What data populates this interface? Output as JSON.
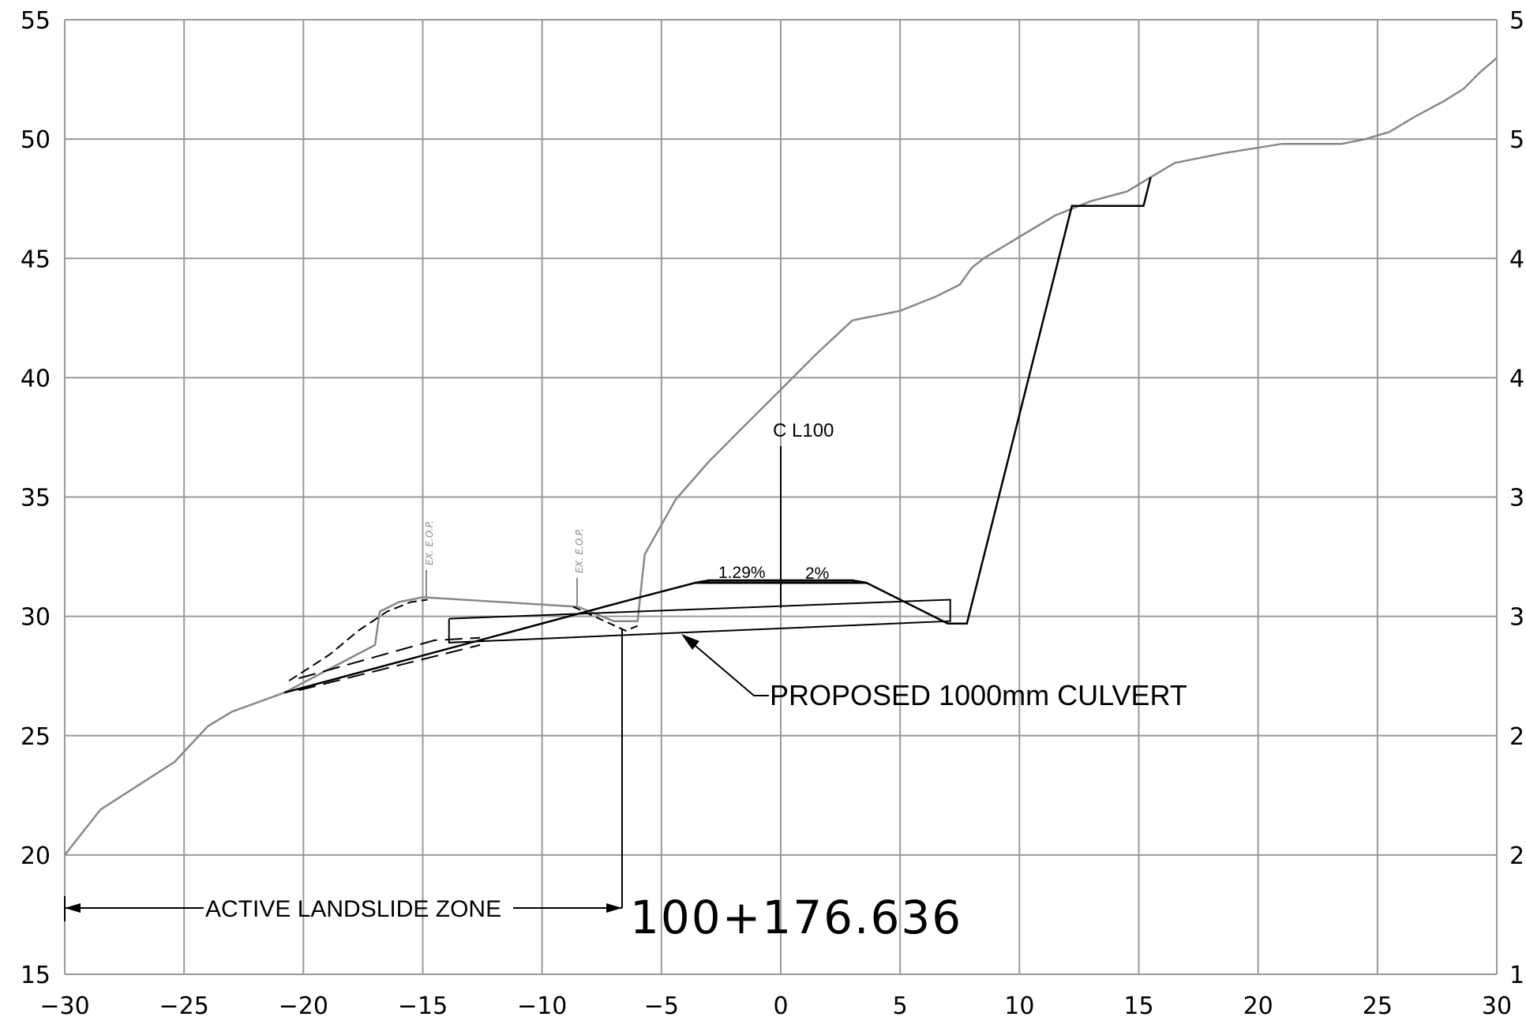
{
  "chart_data": {
    "type": "cross-section",
    "xlim": [
      -30,
      30
    ],
    "ylim": [
      15,
      55
    ],
    "x_ticks": [
      -30,
      -25,
      -20,
      -15,
      -10,
      -5,
      0,
      5,
      10,
      15,
      20,
      25,
      30
    ],
    "y_ticks": [
      15,
      20,
      25,
      30,
      35,
      40,
      45,
      50,
      55
    ],
    "x_tick_labels": [
      "−30",
      "−25",
      "−20",
      "−15",
      "−10",
      "−5",
      "0",
      "5",
      "10",
      "15",
      "20",
      "25",
      "30"
    ],
    "y_tick_labels": [
      "15",
      "20",
      "25",
      "30",
      "35",
      "40",
      "45",
      "50",
      "55"
    ],
    "y_tick_labels_right": [
      "1",
      "2",
      "2",
      "3",
      "3",
      "4",
      "4",
      "5",
      "5"
    ],
    "grid": true,
    "existing_ground": [
      [
        -30,
        20.0
      ],
      [
        -28.5,
        21.9
      ],
      [
        -25.4,
        23.9
      ],
      [
        -24.0,
        25.4
      ],
      [
        -23.0,
        26.0
      ],
      [
        -20.8,
        26.8
      ],
      [
        -17.0,
        28.8
      ],
      [
        -16.8,
        30.2
      ],
      [
        -16.0,
        30.6
      ],
      [
        -15.0,
        30.8
      ],
      [
        -8.5,
        30.4
      ],
      [
        -7.0,
        29.8
      ],
      [
        -6.0,
        29.8
      ],
      [
        -5.7,
        32.6
      ],
      [
        -4.4,
        34.9
      ],
      [
        -3.0,
        36.5
      ],
      [
        -1.5,
        38.0
      ],
      [
        0,
        39.5
      ],
      [
        1.5,
        41.0
      ],
      [
        3.0,
        42.4
      ],
      [
        5.0,
        42.8
      ],
      [
        6.5,
        43.4
      ],
      [
        7.5,
        43.9
      ],
      [
        8.0,
        44.6
      ],
      [
        8.5,
        45.0
      ],
      [
        10.0,
        45.9
      ],
      [
        11.5,
        46.8
      ],
      [
        13.0,
        47.4
      ],
      [
        14.5,
        47.8
      ],
      [
        15.5,
        48.4
      ],
      [
        16.5,
        49.0
      ],
      [
        18.5,
        49.4
      ],
      [
        21.0,
        49.8
      ],
      [
        22.0,
        49.8
      ],
      [
        23.5,
        49.8
      ],
      [
        24.5,
        50.0
      ],
      [
        25.5,
        50.3
      ],
      [
        26.5,
        50.9
      ],
      [
        27.8,
        51.6
      ],
      [
        28.6,
        52.1
      ],
      [
        29.3,
        52.8
      ],
      [
        30,
        53.4
      ]
    ],
    "existing_ground_dashed": [
      [
        -20.6,
        27.3
      ],
      [
        -18.9,
        28.4
      ],
      [
        -17.7,
        29.4
      ],
      [
        -16.5,
        30.2
      ],
      [
        -15.5,
        30.6
      ],
      [
        -14.8,
        30.7
      ]
    ],
    "proposed_road": [
      [
        -20.8,
        26.8
      ],
      [
        -5.9,
        30.8
      ],
      [
        -3.6,
        31.4
      ],
      [
        3.6,
        31.4
      ],
      [
        7.0,
        29.7
      ],
      [
        7.8,
        29.7
      ],
      [
        12.2,
        47.2
      ],
      [
        15.2,
        47.2
      ],
      [
        15.5,
        48.4
      ]
    ],
    "pavement": [
      [
        -3.6,
        31.4
      ],
      [
        -3.0,
        31.5
      ],
      [
        3.0,
        31.5
      ],
      [
        3.6,
        31.4
      ]
    ],
    "culvert_outline": [
      [
        -13.9,
        29.9
      ],
      [
        7.1,
        30.7
      ],
      [
        7.1,
        29.8
      ],
      [
        -13.9,
        28.9
      ],
      [
        -13.9,
        29.9
      ]
    ],
    "culvert_dashed_upper": [
      [
        -20.2,
        27.4
      ],
      [
        -14.5,
        29.0
      ],
      [
        -12.6,
        29.1
      ]
    ],
    "culvert_dashed_lower": [
      [
        -20.2,
        26.9
      ],
      [
        -12.6,
        28.8
      ]
    ],
    "ditch_dashed": [
      [
        -8.7,
        30.4
      ],
      [
        -6.5,
        29.4
      ],
      [
        -6.0,
        29.6
      ]
    ],
    "centerline_x": 0,
    "centerline_label": "C L100",
    "slope_labels": [
      "1.29%",
      "2%"
    ],
    "eop_label": "EX. E.O.P.",
    "culvert_label": "PROPOSED 1000mm CULVERT",
    "landslide_label": "ACTIVE LANDSLIDE ZONE",
    "station_label": "100+176.636"
  }
}
